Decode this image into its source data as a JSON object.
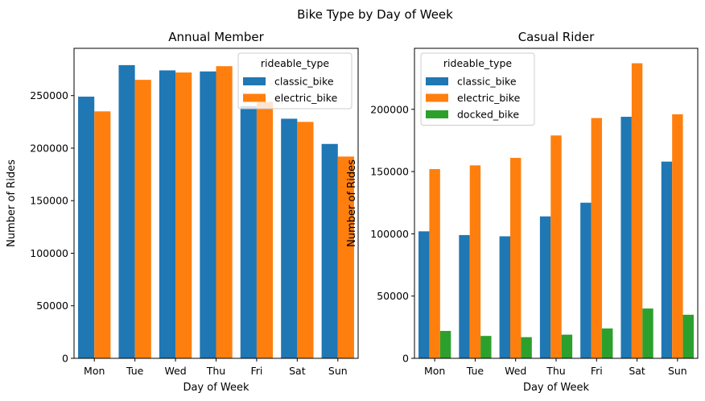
{
  "figure": {
    "suptitle": "Bike Type by Day of Week"
  },
  "colors": {
    "classic_bike": "#1f77b4",
    "electric_bike": "#ff7f0e",
    "docked_bike": "#2ca02c"
  },
  "chart_data": [
    {
      "type": "bar",
      "title": "Annual Member",
      "xlabel": "Day of Week",
      "ylabel": "Number of Rides",
      "categories": [
        "Mon",
        "Tue",
        "Wed",
        "Thu",
        "Fri",
        "Sat",
        "Sun"
      ],
      "ylim": [
        0,
        295000
      ],
      "yticks": [
        0,
        50000,
        100000,
        150000,
        200000,
        250000
      ],
      "legend": {
        "title": "rideable_type",
        "position": "top-right"
      },
      "series": [
        {
          "name": "classic_bike",
          "values": [
            249000,
            279000,
            274000,
            273000,
            240000,
            228000,
            204000
          ]
        },
        {
          "name": "electric_bike",
          "values": [
            235000,
            265000,
            272000,
            278000,
            244000,
            225000,
            192000
          ]
        }
      ]
    },
    {
      "type": "bar",
      "title": "Casual Rider",
      "xlabel": "Day of Week",
      "ylabel": "Number of Rides",
      "categories": [
        "Mon",
        "Tue",
        "Wed",
        "Thu",
        "Fri",
        "Sat",
        "Sun"
      ],
      "ylim": [
        0,
        249000
      ],
      "yticks": [
        0,
        50000,
        100000,
        150000,
        200000
      ],
      "legend": {
        "title": "rideable_type",
        "position": "top-left"
      },
      "series": [
        {
          "name": "classic_bike",
          "values": [
            102000,
            99000,
            98000,
            114000,
            125000,
            194000,
            158000
          ]
        },
        {
          "name": "electric_bike",
          "values": [
            152000,
            155000,
            161000,
            179000,
            193000,
            237000,
            196000
          ]
        },
        {
          "name": "docked_bike",
          "values": [
            22000,
            18000,
            17000,
            19000,
            24000,
            40000,
            35000
          ]
        }
      ]
    }
  ]
}
